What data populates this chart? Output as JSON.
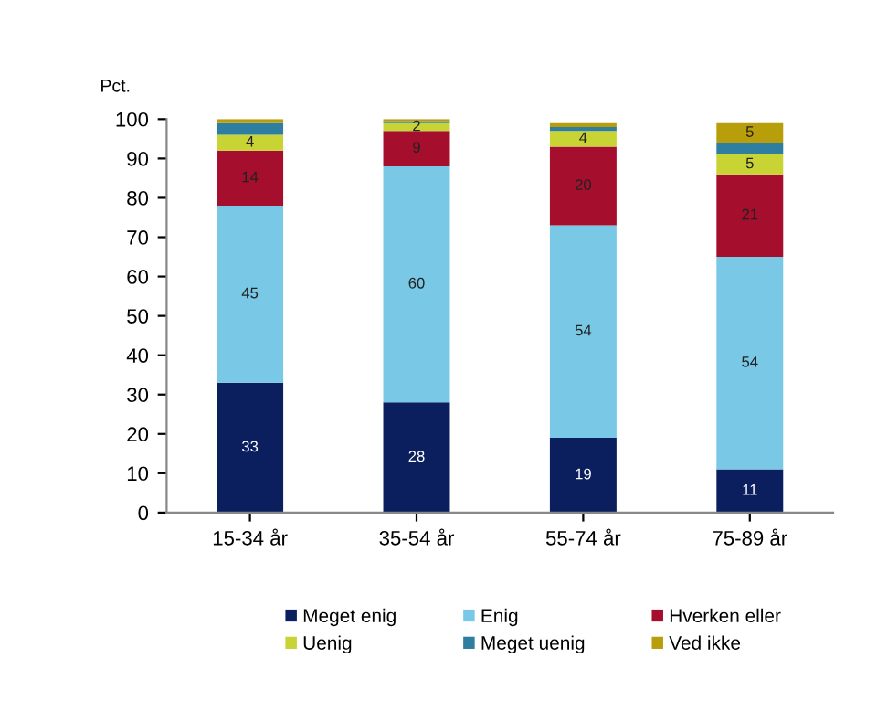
{
  "chart_data": {
    "type": "bar",
    "stacked": true,
    "ylabel": "Pct.",
    "categories": [
      "15-34 år",
      "35-54 år",
      "55-74 år",
      "75-89 år"
    ],
    "series": [
      {
        "name": "Meget enig",
        "color": "#0b1f5e",
        "values": [
          33,
          28,
          19,
          11
        ],
        "value_labels": [
          "33",
          "28",
          "19",
          "11"
        ]
      },
      {
        "name": "Enig",
        "color": "#78c8e6",
        "values": [
          45,
          60,
          54,
          54
        ],
        "value_labels": [
          "45",
          "60",
          "54",
          "54"
        ]
      },
      {
        "name": "Hverken eller",
        "color": "#a50e2d",
        "values": [
          14,
          9,
          20,
          21
        ],
        "value_labels": [
          "14",
          "9",
          "20",
          "21"
        ]
      },
      {
        "name": "Uenig",
        "color": "#c8d334",
        "values": [
          4,
          2,
          4,
          5
        ],
        "value_labels": [
          "4",
          "2",
          "4",
          "5"
        ]
      },
      {
        "name": "Meget uenig",
        "color": "#2d7ea0",
        "values": [
          3,
          0.5,
          1,
          3
        ],
        "value_labels": [
          null,
          null,
          null,
          null
        ]
      },
      {
        "name": "Ved ikke",
        "color": "#b89e0a",
        "values": [
          1,
          0.5,
          1,
          5
        ],
        "value_labels": [
          null,
          null,
          null,
          "5"
        ]
      }
    ],
    "ylim": [
      0,
      100
    ],
    "yticks": [
      0,
      10,
      20,
      30,
      40,
      50,
      60,
      70,
      80,
      90,
      100
    ],
    "grid": false,
    "legend": "bottom"
  }
}
